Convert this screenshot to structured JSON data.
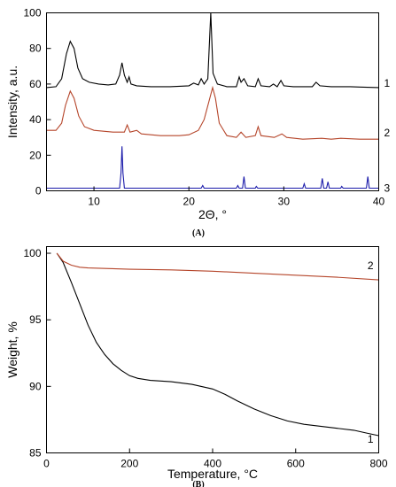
{
  "chart_data": [
    {
      "panel": "(A)",
      "type": "line",
      "xlabel": "2Θ, °",
      "ylabel": "Intensity, a.u.",
      "xlim": [
        5,
        40
      ],
      "ylim": [
        0,
        100
      ],
      "xticks": [
        10,
        20,
        30,
        40
      ],
      "yticks": [
        0,
        20,
        40,
        60,
        80,
        100
      ],
      "grid": false,
      "series": [
        {
          "name": "1",
          "color": "#000000",
          "points": [
            [
              5,
              58
            ],
            [
              6,
              58.5
            ],
            [
              6.6,
              63
            ],
            [
              7.1,
              77
            ],
            [
              7.5,
              84
            ],
            [
              7.9,
              80
            ],
            [
              8.3,
              69
            ],
            [
              8.8,
              63
            ],
            [
              9.5,
              61
            ],
            [
              10.5,
              60
            ],
            [
              11.5,
              59.5
            ],
            [
              12.3,
              60
            ],
            [
              12.7,
              65
            ],
            [
              12.95,
              72
            ],
            [
              13.2,
              65
            ],
            [
              13.5,
              61
            ],
            [
              13.7,
              64
            ],
            [
              13.9,
              60
            ],
            [
              14.5,
              59
            ],
            [
              16,
              58.5
            ],
            [
              18,
              58.5
            ],
            [
              20,
              59
            ],
            [
              20.5,
              60.5
            ],
            [
              21,
              59.5
            ],
            [
              21.3,
              63
            ],
            [
              21.6,
              60
            ],
            [
              22,
              63
            ],
            [
              22.3,
              100
            ],
            [
              22.55,
              66
            ],
            [
              23,
              60
            ],
            [
              24,
              58.5
            ],
            [
              25,
              58.5
            ],
            [
              25.3,
              64
            ],
            [
              25.5,
              61
            ],
            [
              25.8,
              63
            ],
            [
              26.2,
              59
            ],
            [
              27,
              58.5
            ],
            [
              27.3,
              63
            ],
            [
              27.6,
              59
            ],
            [
              28.5,
              58.5
            ],
            [
              28.9,
              60
            ],
            [
              29.3,
              58.5
            ],
            [
              29.7,
              62
            ],
            [
              30,
              59
            ],
            [
              31,
              58.5
            ],
            [
              33,
              58.5
            ],
            [
              33.4,
              61
            ],
            [
              33.8,
              59
            ],
            [
              35,
              58.5
            ],
            [
              37,
              58.5
            ],
            [
              38,
              58.3
            ],
            [
              40,
              58
            ]
          ]
        },
        {
          "name": "2",
          "color": "#b5452a",
          "points": [
            [
              5,
              34
            ],
            [
              6,
              34
            ],
            [
              6.6,
              38
            ],
            [
              7,
              48
            ],
            [
              7.5,
              56
            ],
            [
              7.9,
              52
            ],
            [
              8.4,
              42
            ],
            [
              9,
              36
            ],
            [
              10,
              34
            ],
            [
              12,
              33
            ],
            [
              13.2,
              33
            ],
            [
              13.5,
              37
            ],
            [
              13.8,
              33
            ],
            [
              14.5,
              34
            ],
            [
              15,
              32
            ],
            [
              17,
              31
            ],
            [
              19,
              31
            ],
            [
              20,
              31.5
            ],
            [
              21,
              34
            ],
            [
              21.6,
              40
            ],
            [
              22.2,
              52
            ],
            [
              22.5,
              58
            ],
            [
              22.8,
              52
            ],
            [
              23.2,
              38
            ],
            [
              24,
              31
            ],
            [
              25,
              30
            ],
            [
              25.5,
              33
            ],
            [
              26,
              30
            ],
            [
              27,
              31
            ],
            [
              27.3,
              36
            ],
            [
              27.6,
              31
            ],
            [
              29,
              30
            ],
            [
              29.8,
              32
            ],
            [
              30.3,
              30
            ],
            [
              32,
              29
            ],
            [
              34,
              29.5
            ],
            [
              35,
              29
            ],
            [
              36,
              29.5
            ],
            [
              38,
              29
            ],
            [
              40,
              29
            ]
          ]
        },
        {
          "name": "3",
          "color": "#1a1aaa",
          "points": [
            [
              5,
              1.5
            ],
            [
              12.7,
              1.5
            ],
            [
              12.85,
              10
            ],
            [
              12.95,
              25
            ],
            [
              13.05,
              10
            ],
            [
              13.2,
              1.5
            ],
            [
              21.3,
              1.5
            ],
            [
              21.45,
              3
            ],
            [
              21.6,
              1.5
            ],
            [
              25,
              1.5
            ],
            [
              25.15,
              3
            ],
            [
              25.3,
              1.5
            ],
            [
              25.65,
              1.5
            ],
            [
              25.8,
              8
            ],
            [
              25.95,
              1.5
            ],
            [
              27,
              1.5
            ],
            [
              27.1,
              2.5
            ],
            [
              27.25,
              1.5
            ],
            [
              32,
              1.5
            ],
            [
              32.15,
              4
            ],
            [
              32.3,
              1.5
            ],
            [
              33.9,
              1.5
            ],
            [
              34.05,
              7
            ],
            [
              34.2,
              1.5
            ],
            [
              34.5,
              1.5
            ],
            [
              34.65,
              5
            ],
            [
              34.8,
              1.5
            ],
            [
              36,
              1.5
            ],
            [
              36.1,
              2.5
            ],
            [
              36.25,
              1.5
            ],
            [
              38.7,
              1.5
            ],
            [
              38.85,
              8
            ],
            [
              39,
              1.5
            ],
            [
              40,
              1.5
            ]
          ]
        }
      ]
    },
    {
      "panel": "(B)",
      "type": "line",
      "xlabel": "Temperature, °C",
      "ylabel": "Weight, %",
      "xlim": [
        0,
        800
      ],
      "ylim": [
        85,
        100.5
      ],
      "xticks": [
        0,
        200,
        400,
        600,
        800
      ],
      "yticks": [
        85,
        90,
        95,
        100
      ],
      "grid": false,
      "series": [
        {
          "name": "1",
          "color": "#000000",
          "points": [
            [
              25,
              100
            ],
            [
              40,
              99.3
            ],
            [
              60,
              97.8
            ],
            [
              80,
              96.2
            ],
            [
              100,
              94.6
            ],
            [
              120,
              93.3
            ],
            [
              140,
              92.4
            ],
            [
              160,
              91.7
            ],
            [
              180,
              91.2
            ],
            [
              200,
              90.8
            ],
            [
              220,
              90.6
            ],
            [
              250,
              90.45
            ],
            [
              300,
              90.35
            ],
            [
              350,
              90.15
            ],
            [
              400,
              89.8
            ],
            [
              430,
              89.4
            ],
            [
              460,
              88.9
            ],
            [
              500,
              88.3
            ],
            [
              540,
              87.8
            ],
            [
              580,
              87.4
            ],
            [
              620,
              87.15
            ],
            [
              660,
              87.0
            ],
            [
              700,
              86.85
            ],
            [
              740,
              86.7
            ],
            [
              770,
              86.5
            ],
            [
              800,
              86.3
            ]
          ]
        },
        {
          "name": "2",
          "color": "#b5452a",
          "points": [
            [
              25,
              100
            ],
            [
              40,
              99.4
            ],
            [
              60,
              99.1
            ],
            [
              80,
              98.95
            ],
            [
              100,
              98.9
            ],
            [
              150,
              98.85
            ],
            [
              200,
              98.8
            ],
            [
              300,
              98.75
            ],
            [
              400,
              98.65
            ],
            [
              500,
              98.5
            ],
            [
              600,
              98.35
            ],
            [
              700,
              98.2
            ],
            [
              800,
              98.0
            ]
          ]
        }
      ]
    }
  ]
}
